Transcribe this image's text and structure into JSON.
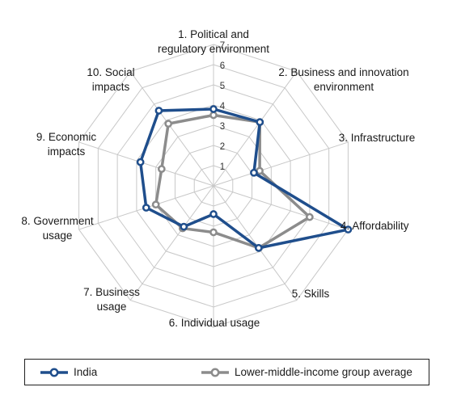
{
  "chart_data": {
    "type": "radar",
    "axes": [
      [
        "1. Political and",
        "regulatory environment"
      ],
      [
        "2. Business and innovation",
        "environment"
      ],
      [
        "3. Infrastructure"
      ],
      [
        "4. Affordability"
      ],
      [
        "5. Skills"
      ],
      [
        "6. Individual usage"
      ],
      [
        "7. Business",
        "usage"
      ],
      [
        "8. Government",
        "usage"
      ],
      [
        "9. Economic",
        "impacts"
      ],
      [
        "10. Social",
        "impacts"
      ]
    ],
    "ticks": [
      "1",
      "2",
      "3",
      "4",
      "5",
      "6",
      "7"
    ],
    "rmin": 0,
    "rmax": 7,
    "series": [
      {
        "name": "India",
        "color": "#1f4e8c",
        "values": [
          3.8,
          3.9,
          2.1,
          7.0,
          3.8,
          1.4,
          2.5,
          3.5,
          3.8,
          4.6
        ]
      },
      {
        "name": "Lower-middle-income group average",
        "color": "#8c8c8c",
        "values": [
          3.5,
          3.9,
          2.4,
          5.0,
          3.8,
          2.3,
          2.6,
          3.0,
          2.7,
          3.8
        ]
      }
    ],
    "legend_position": "bottom"
  }
}
